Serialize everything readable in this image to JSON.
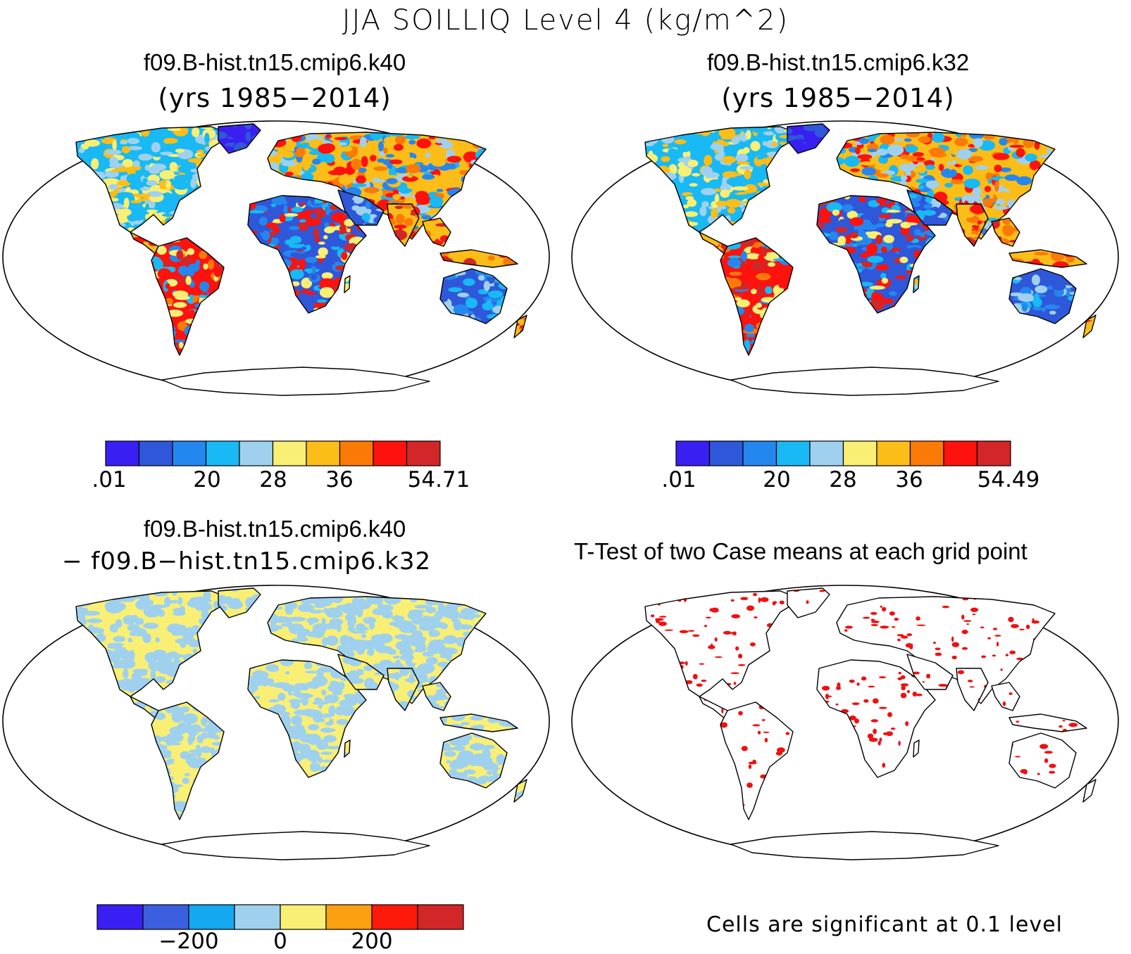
{
  "title": "JJA SOILLIQ Level 4 (kg/m^2)",
  "panels": {
    "top_left": {
      "case": "f09.B-hist.tn15.cmip6.k40",
      "years": "(yrs 1985−2014)"
    },
    "top_right": {
      "case": "f09.B-hist.tn15.cmip6.k32",
      "years": "(yrs 1985−2014)"
    },
    "bottom_left": {
      "case": "f09.B-hist.tn15.cmip6.k40",
      "minus": "− f09.B−hist.tn15.cmip6.k32"
    },
    "bottom_right": {
      "title": "T-Test of two Case means at each grid point"
    }
  },
  "colorbars": {
    "top_left": {
      "colors": [
        "#3a1ff2",
        "#2f57d9",
        "#2487ef",
        "#18b9f4",
        "#9fd1ef",
        "#f9ef74",
        "#fbbd17",
        "#fb7a07",
        "#fe120e",
        "#d22628"
      ],
      "labels": [
        ".01",
        "20",
        "28",
        "36",
        "54.71"
      ]
    },
    "top_right": {
      "colors": [
        "#3a1ff2",
        "#2f57d9",
        "#2487ef",
        "#18b9f4",
        "#9fd1ef",
        "#f9ef74",
        "#fbbd17",
        "#fb7a07",
        "#fe120e",
        "#d22628"
      ],
      "labels": [
        ".01",
        "20",
        "28",
        "36",
        "54.49"
      ]
    },
    "bottom_left": {
      "colors": [
        "#3a1ff2",
        "#3b5fde",
        "#14a8f0",
        "#9fd1ef",
        "#f9ef74",
        "#fba010",
        "#fe1a0a",
        "#d22628"
      ],
      "labels": [
        "−200",
        "0",
        "200"
      ]
    }
  },
  "significance_note": "Cells are significant at 0.1 level",
  "colors": {
    "significant": "#f01010",
    "land_outline": "#000000"
  }
}
